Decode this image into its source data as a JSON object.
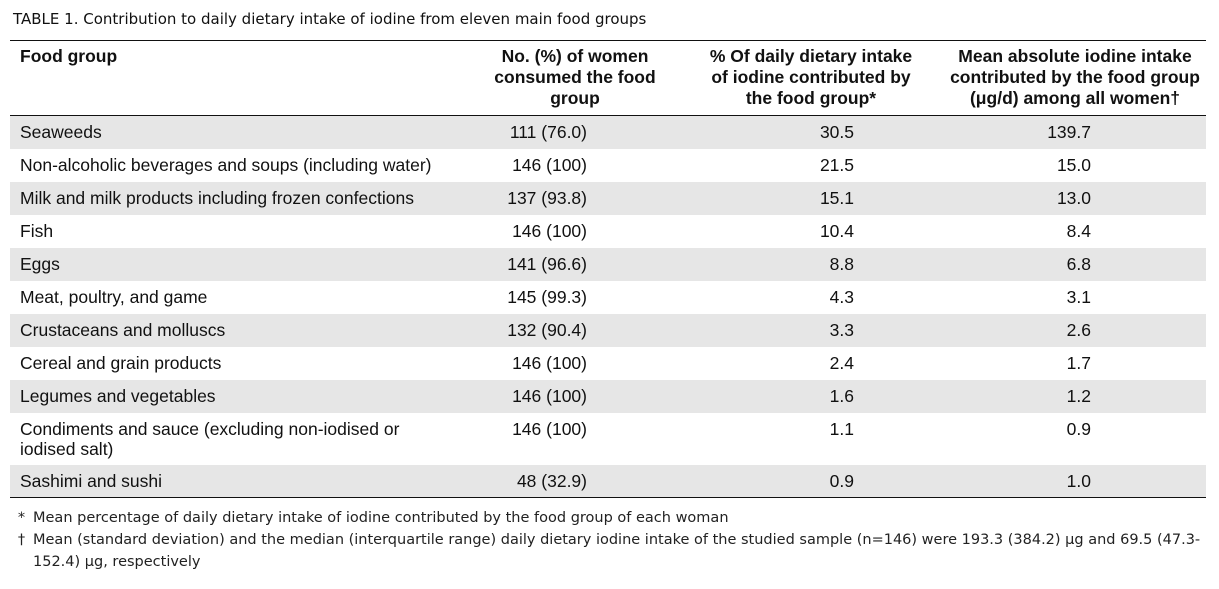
{
  "caption": {
    "label": "TABLE 1.",
    "title": "Contribution to daily dietary intake of iodine from eleven main food groups"
  },
  "table": {
    "headers": [
      [
        "Food group"
      ],
      [
        "No. (%) of women",
        "consumed the food",
        "group"
      ],
      [
        "% Of daily dietary intake",
        "of iodine contributed by",
        "the food group*"
      ],
      [
        "Mean absolute iodine intake",
        "contributed by the food group",
        "(μg/d) among all women†"
      ]
    ],
    "rows": [
      {
        "name": [
          "Seaweeds"
        ],
        "consumed": "111 (76.0)",
        "percent": "30.5",
        "mean": "139.7"
      },
      {
        "name": [
          "Non-alcoholic beverages and soups (including water)"
        ],
        "consumed": "146 (100)",
        "percent": "21.5",
        "mean": "15.0"
      },
      {
        "name": [
          "Milk and milk products including frozen confections"
        ],
        "consumed": "137 (93.8)",
        "percent": "15.1",
        "mean": "13.0"
      },
      {
        "name": [
          "Fish"
        ],
        "consumed": "146 (100)",
        "percent": "10.4",
        "mean": "8.4"
      },
      {
        "name": [
          "Eggs"
        ],
        "consumed": "141 (96.6)",
        "percent": "8.8",
        "mean": "6.8"
      },
      {
        "name": [
          "Meat, poultry, and game"
        ],
        "consumed": "145 (99.3)",
        "percent": "4.3",
        "mean": "3.1"
      },
      {
        "name": [
          "Crustaceans and molluscs"
        ],
        "consumed": "132 (90.4)",
        "percent": "3.3",
        "mean": "2.6"
      },
      {
        "name": [
          "Cereal and grain products"
        ],
        "consumed": "146 (100)",
        "percent": "2.4",
        "mean": "1.7"
      },
      {
        "name": [
          "Legumes and vegetables"
        ],
        "consumed": "146 (100)",
        "percent": "1.6",
        "mean": "1.2"
      },
      {
        "name": [
          "Condiments and sauce (excluding non-iodised or",
          "iodised salt)"
        ],
        "consumed": "146 (100)",
        "percent": "1.1",
        "mean": "0.9"
      },
      {
        "name": [
          "Sashimi and sushi"
        ],
        "consumed": "48 (32.9)",
        "percent": "0.9",
        "mean": "1.0"
      }
    ]
  },
  "footnotes": [
    {
      "symbol": "*",
      "text": "Mean percentage of daily dietary intake of iodine contributed by the food group of each woman"
    },
    {
      "symbol": "†",
      "text": "Mean (standard deviation) and the median (interquartile range) daily dietary iodine intake of the studied sample (n=146) were 193.3 (384.2) μg and 69.5 (47.3-152.4) μg, respectively"
    }
  ],
  "colors": {
    "row_shade": "#e6e6e6",
    "rule": "#111111"
  }
}
